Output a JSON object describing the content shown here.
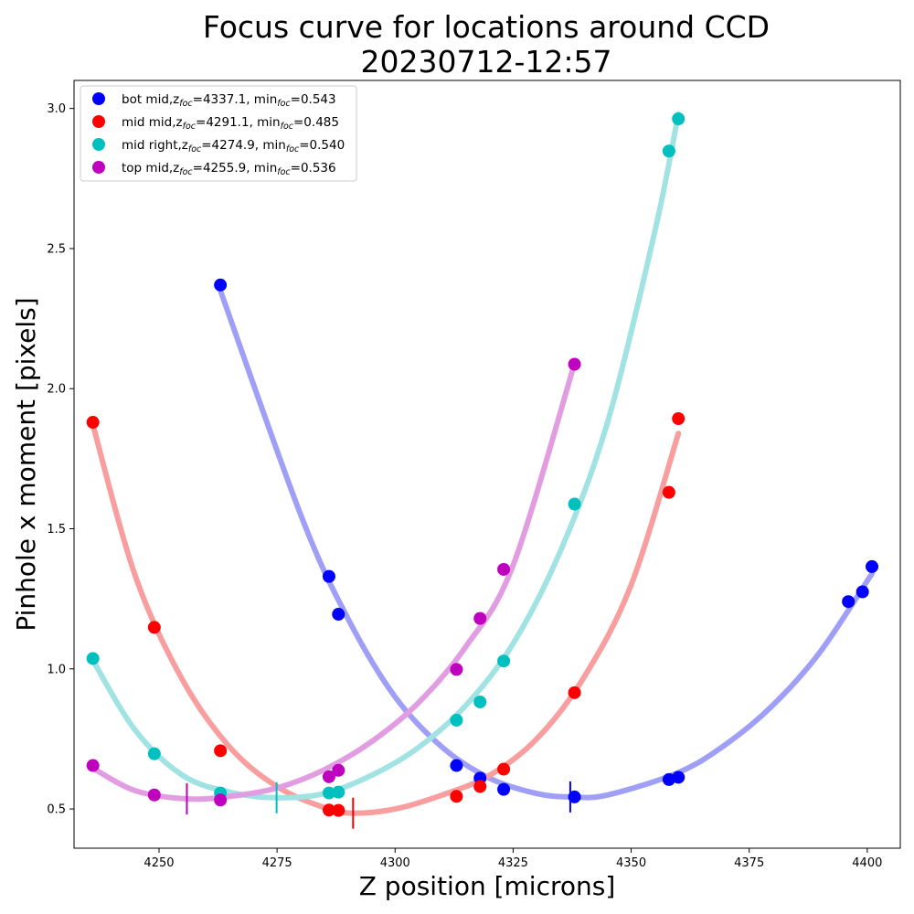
{
  "chart_data": {
    "type": "scatter",
    "title_line1": "Focus curve for locations around CCD",
    "title_line2": "20230712-12:57",
    "xlabel": "Z position [microns]",
    "ylabel": "Pinhole x moment [pixels]",
    "xlim": [
      4232,
      4407
    ],
    "ylim": [
      0.36,
      3.1
    ],
    "xticks": [
      4250,
      4275,
      4300,
      4325,
      4350,
      4375,
      4400
    ],
    "yticks": [
      0.5,
      1.0,
      1.5,
      2.0,
      2.5,
      3.0
    ],
    "legend_position": "upper-left",
    "series": [
      {
        "name": "bot mid",
        "legend": {
          "prefix": "bot mid,z",
          "sub1": "foc",
          "mid": "=4337.1, min",
          "sub2": "foc",
          "suffix": "=0.543"
        },
        "color": "#0000ff",
        "fit_color": "#9f9ff7",
        "z_foc": 4337.1,
        "min_foc": 0.543,
        "x": [
          4263,
          4286,
          4288,
          4313,
          4318,
          4323,
          4338,
          4358,
          4360,
          4396,
          4399,
          4401
        ],
        "y": [
          2.37,
          1.33,
          1.195,
          0.655,
          0.61,
          0.57,
          0.543,
          0.605,
          0.613,
          1.24,
          1.275,
          1.365
        ],
        "fit_x": [
          4263,
          4280,
          4290,
          4300,
          4310,
          4320,
          4330,
          4337.1,
          4345,
          4360,
          4370,
          4380,
          4390,
          4401
        ],
        "fit_y": [
          2.35,
          1.55,
          1.18,
          0.9,
          0.72,
          0.61,
          0.555,
          0.543,
          0.55,
          0.63,
          0.73,
          0.87,
          1.06,
          1.34
        ]
      },
      {
        "name": "mid mid",
        "legend": {
          "prefix": "mid mid,z",
          "sub1": "foc",
          "mid": "=4291.1, min",
          "sub2": "foc",
          "suffix": "=0.485"
        },
        "color": "#ff0000",
        "fit_color": "#f99e9e",
        "z_foc": 4291.1,
        "min_foc": 0.485,
        "x": [
          4236,
          4249,
          4263,
          4286,
          4288,
          4313,
          4318,
          4323,
          4338,
          4358,
          4360
        ],
        "y": [
          1.88,
          1.148,
          0.708,
          0.496,
          0.495,
          0.545,
          0.58,
          0.642,
          0.915,
          1.63,
          1.893
        ],
        "fit_x": [
          4236,
          4245,
          4255,
          4265,
          4275,
          4285,
          4291.1,
          4300,
          4310,
          4320,
          4330,
          4340,
          4350,
          4360
        ],
        "fit_y": [
          1.87,
          1.33,
          0.96,
          0.72,
          0.58,
          0.505,
          0.485,
          0.5,
          0.55,
          0.62,
          0.75,
          0.97,
          1.3,
          1.84
        ]
      },
      {
        "name": "mid right",
        "legend": {
          "prefix": "mid right,z",
          "sub1": "foc",
          "mid": "=4274.9, min",
          "sub2": "foc",
          "suffix": "=0.540"
        },
        "color": "#00bfbf",
        "fit_color": "#a1e3e3",
        "z_foc": 4274.9,
        "min_foc": 0.54,
        "x": [
          4236,
          4249,
          4263,
          4286,
          4288,
          4313,
          4318,
          4323,
          4338,
          4358,
          4360
        ],
        "y": [
          1.037,
          0.697,
          0.557,
          0.557,
          0.56,
          0.817,
          0.882,
          1.028,
          1.588,
          2.848,
          2.963
        ],
        "fit_x": [
          4236,
          4245,
          4255,
          4265,
          4274.9,
          4285,
          4295,
          4305,
          4315,
          4325,
          4335,
          4345,
          4355,
          4360
        ],
        "fit_y": [
          1.03,
          0.78,
          0.62,
          0.56,
          0.54,
          0.555,
          0.62,
          0.72,
          0.87,
          1.09,
          1.42,
          1.88,
          2.56,
          2.98
        ]
      },
      {
        "name": "top mid",
        "legend": {
          "prefix": "top mid,z",
          "sub1": "foc",
          "mid": "=4255.9, min",
          "sub2": "foc",
          "suffix": "=0.536"
        },
        "color": "#bf00bf",
        "fit_color": "#e29de2",
        "z_foc": 4255.9,
        "min_foc": 0.536,
        "x": [
          4236,
          4249,
          4263,
          4286,
          4288,
          4313,
          4318,
          4323,
          4338
        ],
        "y": [
          0.655,
          0.55,
          0.532,
          0.615,
          0.638,
          0.998,
          1.18,
          1.355,
          2.087
        ],
        "fit_x": [
          4236,
          4245,
          4255.9,
          4265,
          4275,
          4285,
          4295,
          4305,
          4315,
          4325,
          4338
        ],
        "fit_y": [
          0.645,
          0.565,
          0.536,
          0.545,
          0.575,
          0.64,
          0.74,
          0.88,
          1.08,
          1.37,
          2.09
        ]
      }
    ]
  }
}
